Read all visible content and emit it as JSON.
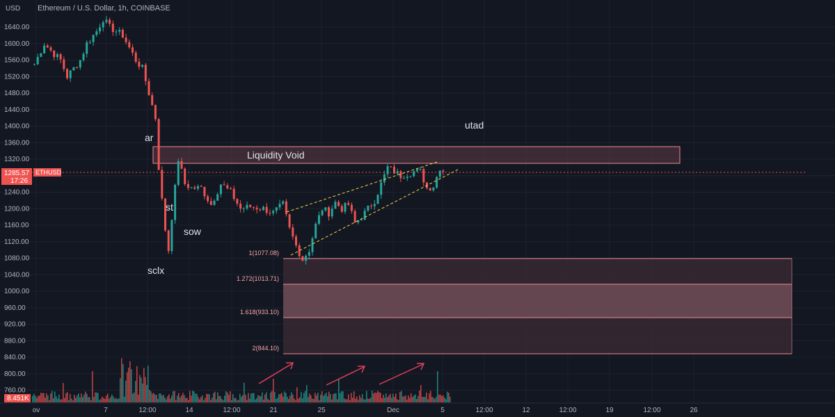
{
  "header": {
    "pair_title": "Ethereum / U.S. Dollar, 1h, COINBASE",
    "currency": "USD",
    "symbol": "ETHUSD"
  },
  "price_badge": {
    "price": "1285.57",
    "countdown": "17:26"
  },
  "volume_badge": "8.451K",
  "colors": {
    "background": "#131722",
    "up": "#26a69a",
    "down": "#ef5350",
    "zone_border": "#f28b96",
    "zone_fill": "#5e3a45",
    "trendline": "#f5d547",
    "arrow": "#e0405a",
    "price_line": "#ef5350"
  },
  "annotations": {
    "ar": "ar",
    "st": "st",
    "sow": "sow",
    "sclx": "sclx",
    "utad": "utad",
    "liquidity_void": "Liquidity Void"
  },
  "fib_levels": [
    {
      "label": "1(1077.08)",
      "price": 1077.08
    },
    {
      "label": "1.272(1013.71)",
      "price": 1013.71
    },
    {
      "label": "1.618(933.10)",
      "price": 933.1
    },
    {
      "label": "2(844.10)",
      "price": 844.1
    }
  ],
  "chart_data": {
    "type": "candlestick",
    "title": "Ethereum / U.S. Dollar, 1h, COINBASE",
    "y_axis": {
      "ticks": [
        "1640.00",
        "1600.00",
        "1560.00",
        "1520.00",
        "1480.00",
        "1440.00",
        "1400.00",
        "1360.00",
        "1320.00",
        "1280.00",
        "1240.00",
        "1200.00",
        "1160.00",
        "1120.00",
        "1080.00",
        "1040.00",
        "1000.00",
        "960.00",
        "920.00",
        "880.00",
        "840.00",
        "800.00",
        "760.00"
      ],
      "ylim": [
        740,
        1670
      ]
    },
    "x_axis": {
      "ticks": [
        "ov",
        "7",
        "12:00",
        "14",
        "12:00",
        "21",
        "25",
        "Dec",
        "5",
        "12:00",
        "12",
        "12:00",
        "19",
        "12:00",
        "26"
      ]
    },
    "current_price": 1285.57,
    "price_path": [
      [
        0,
        1550
      ],
      [
        3,
        1600
      ],
      [
        6,
        1575
      ],
      [
        8,
        1560
      ],
      [
        10,
        1520
      ],
      [
        12,
        1540
      ],
      [
        14,
        1560
      ],
      [
        16,
        1600
      ],
      [
        19,
        1630
      ],
      [
        21,
        1660
      ],
      [
        23,
        1640
      ],
      [
        25,
        1630
      ],
      [
        27,
        1620
      ],
      [
        29,
        1590
      ],
      [
        31,
        1560
      ],
      [
        33,
        1540
      ],
      [
        35,
        1480
      ],
      [
        37,
        1420
      ],
      [
        38,
        1300
      ],
      [
        39,
        1220
      ],
      [
        40,
        1150
      ],
      [
        41,
        1100
      ],
      [
        42,
        1180
      ],
      [
        43,
        1250
      ],
      [
        44,
        1320
      ],
      [
        46,
        1260
      ],
      [
        48,
        1250
      ],
      [
        51,
        1250
      ],
      [
        54,
        1210
      ],
      [
        57,
        1260
      ],
      [
        60,
        1240
      ],
      [
        63,
        1200
      ],
      [
        66,
        1205
      ],
      [
        70,
        1200
      ],
      [
        73,
        1190
      ],
      [
        76,
        1210
      ],
      [
        78,
        1150
      ],
      [
        80,
        1110
      ],
      [
        82,
        1077
      ],
      [
        84,
        1100
      ],
      [
        86,
        1160
      ],
      [
        88,
        1200
      ],
      [
        90,
        1190
      ],
      [
        92,
        1215
      ],
      [
        94,
        1200
      ],
      [
        96,
        1210
      ],
      [
        98,
        1165
      ],
      [
        100,
        1180
      ],
      [
        102,
        1200
      ],
      [
        104,
        1220
      ],
      [
        106,
        1260
      ],
      [
        108,
        1300
      ],
      [
        110,
        1290
      ],
      [
        112,
        1280
      ],
      [
        114,
        1285
      ],
      [
        116,
        1290
      ],
      [
        118,
        1290
      ],
      [
        120,
        1250
      ],
      [
        122,
        1255
      ],
      [
        124,
        1300
      ],
      [
        126,
        1285
      ]
    ],
    "volume": {
      "base": 8.451,
      "unit": "K"
    }
  }
}
